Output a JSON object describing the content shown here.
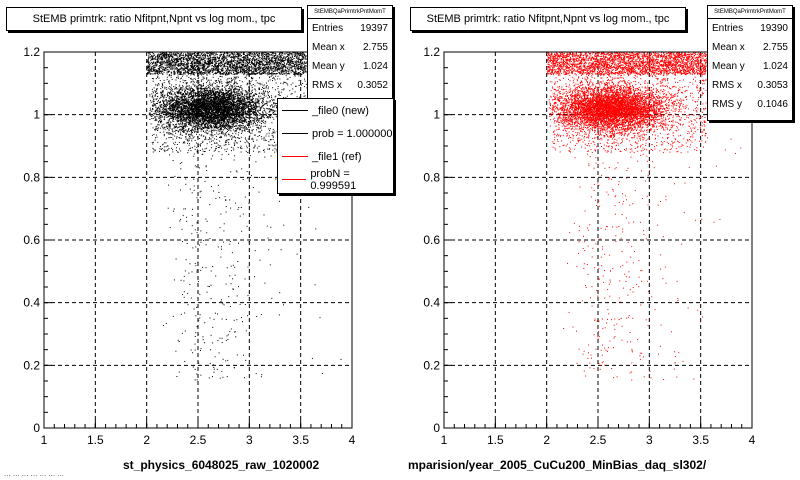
{
  "footer": "... ... ... ... ... ... ...",
  "colors": {
    "left_points": "#000000",
    "right_points": "#ff0000",
    "grid": "#000000"
  },
  "chart_data": [
    {
      "type": "scatter",
      "title": "StEMB primtrk: ratio Nfitpnt,Npnt vs log mom., tpc",
      "xlabel": "st_physics_6048025_raw_1020002",
      "ylabel": "",
      "xlim": [
        1,
        4
      ],
      "ylim": [
        0,
        1.2
      ],
      "x_ticks": [
        "1",
        "1.5",
        "2",
        "2.5",
        "3",
        "3.5",
        "4"
      ],
      "y_ticks": [
        "0",
        "0.2",
        "0.4",
        "0.6",
        "0.8",
        "1",
        "1.2"
      ],
      "grid": true,
      "point_color": "#000000",
      "stats": {
        "name": "StEMBQaPrimtrkPntMomT",
        "rows": [
          {
            "label": "Entries",
            "value": "19397"
          },
          {
            "label": "Mean x",
            "value": "2.755"
          },
          {
            "label": "Mean y",
            "value": "1.024"
          },
          {
            "label": "RMS x",
            "value": "0.3052"
          }
        ]
      },
      "legend": {
        "placement": "right",
        "entries": [
          {
            "text": "_file0 (new)",
            "color": "#000000"
          },
          {
            "text": "prob = 1.000000",
            "color": "#000000"
          },
          {
            "text": "_file1 (ref)",
            "color": "#ff0000"
          },
          {
            "text": "probN = 0.999591",
            "color": "#ff0000"
          }
        ]
      },
      "series": [
        {
          "name": "_file0 (new)",
          "x_range": [
            2.0,
            3.5
          ],
          "core_y": 1.02,
          "band_y": [
            1.15,
            1.2
          ],
          "count": 19397
        }
      ]
    },
    {
      "type": "scatter",
      "title": "StEMB primtrk: ratio Nfitpnt,Npnt vs log mom., tpc",
      "xlabel": "mparision/year_2005_CuCu200_MinBias_daq_sl302/",
      "ylabel": "",
      "xlim": [
        1,
        4
      ],
      "ylim": [
        0,
        1.2
      ],
      "x_ticks": [
        "1",
        "1.5",
        "2",
        "2.5",
        "3",
        "3.5",
        "4"
      ],
      "y_ticks": [
        "0",
        "0.2",
        "0.4",
        "0.6",
        "0.8",
        "1",
        "1.2"
      ],
      "grid": true,
      "point_color": "#ff0000",
      "stats": {
        "name": "StEMBQaPrimtrkPntMomT",
        "rows": [
          {
            "label": "Entries",
            "value": "19390"
          },
          {
            "label": "Mean x",
            "value": "2.755"
          },
          {
            "label": "Mean y",
            "value": "1.024"
          },
          {
            "label": "RMS x",
            "value": "0.3053"
          },
          {
            "label": "RMS y",
            "value": "0.1046"
          }
        ]
      },
      "series": [
        {
          "name": "_file1 (ref)",
          "x_range": [
            2.0,
            3.5
          ],
          "core_y": 1.02,
          "band_y": [
            1.15,
            1.2
          ],
          "count": 19390
        }
      ]
    }
  ]
}
